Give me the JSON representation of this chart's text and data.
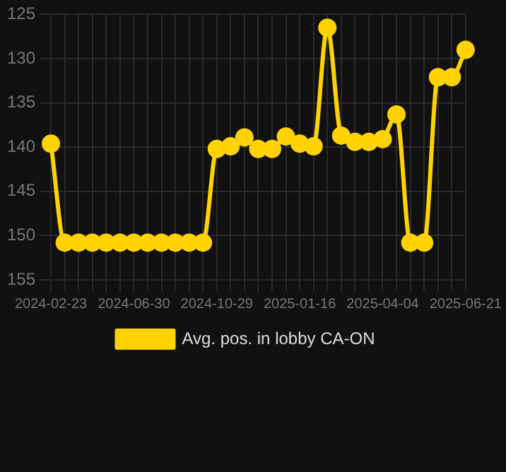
{
  "chart_data": {
    "type": "line",
    "categories": [
      "2024-02-23",
      null,
      null,
      null,
      null,
      null,
      "2024-06-30",
      null,
      null,
      null,
      null,
      null,
      "2024-10-29",
      null,
      null,
      null,
      null,
      null,
      "2025-01-16",
      null,
      null,
      null,
      null,
      null,
      "2025-04-04",
      null,
      null,
      null,
      null,
      null,
      "2025-06-21"
    ],
    "series": [
      {
        "name": "Avg. pos. in lobby CA-ON",
        "color": "#ffd200",
        "values": [
          139.6,
          150.8,
          150.8,
          150.8,
          150.8,
          150.8,
          150.8,
          150.8,
          150.8,
          150.8,
          150.8,
          150.8,
          140.2,
          139.9,
          138.9,
          140.2,
          140.2,
          138.8,
          139.6,
          139.9,
          126.5,
          138.7,
          139.4,
          139.4,
          139.1,
          136.3,
          150.8,
          150.8,
          132.1,
          132.1,
          129.0
        ]
      }
    ],
    "ylim": [
      155,
      125
    ],
    "yticks": [
      125,
      130,
      135,
      140,
      145,
      150,
      155
    ],
    "grid": true,
    "legend": "bottom",
    "marker": "circle",
    "line_style": "solid"
  }
}
